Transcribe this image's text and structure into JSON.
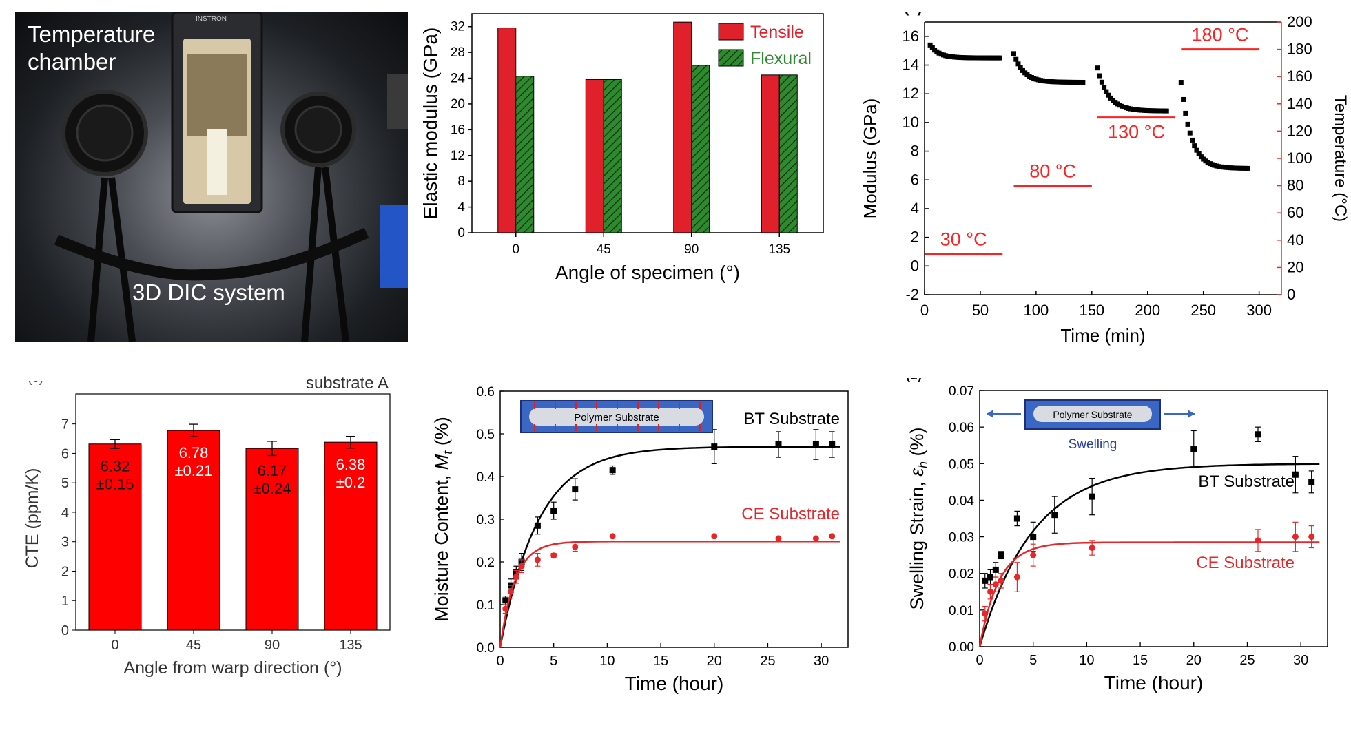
{
  "photo": {
    "label_temperature_chamber_line1": "Temperature",
    "label_temperature_chamber_line2": "chamber",
    "label_dic_system": "3D DIC system",
    "brand_text": "INSTRON"
  },
  "colors": {
    "tensile_red": "#e0202a",
    "flexural_green": "#2f8a2f",
    "cte_red": "#ff0000",
    "bt_black": "#000000",
    "ce_red": "#e8262a",
    "temperature_red": "#ff2020"
  },
  "chart_data": [
    {
      "id": "elastic_modulus",
      "type": "bar",
      "xlabel": "Angle of specimen (°)",
      "ylabel": "Elastic modulus (GPa)",
      "categories": [
        "0",
        "45",
        "90",
        "135"
      ],
      "ylim": [
        0,
        34
      ],
      "yticks": [
        "0",
        "4",
        "8",
        "12",
        "16",
        "20",
        "24",
        "28",
        "32"
      ],
      "series": [
        {
          "name": "Tensile",
          "values": [
            31.8,
            23.8,
            32.7,
            24.5
          ]
        },
        {
          "name": "Flexural",
          "values": [
            24.3,
            23.8,
            26.0,
            24.5
          ]
        }
      ],
      "legend": "top-right"
    },
    {
      "id": "modulus_time",
      "type": "scatter",
      "panel_tag": "(a)",
      "xlabel": "Time (min)",
      "ylabel": "Modulus (GPa)",
      "y2label": "Temperature (°C)",
      "xlim": [
        0,
        320
      ],
      "ylim": [
        -2,
        17
      ],
      "y2lim": [
        0,
        200
      ],
      "xticks": [
        "0",
        "50",
        "100",
        "150",
        "200",
        "250",
        "300"
      ],
      "yticks": [
        "-2",
        "0",
        "2",
        "4",
        "6",
        "8",
        "10",
        "12",
        "14",
        "16"
      ],
      "y2ticks": [
        "0",
        "20",
        "40",
        "60",
        "80",
        "100",
        "120",
        "140",
        "160",
        "180",
        "200"
      ],
      "temperature_steps": [
        {
          "label": "30 °C",
          "x": [
            0,
            70
          ],
          "temperature": 30
        },
        {
          "label": "80 °C",
          "x": [
            80,
            150
          ],
          "temperature": 80
        },
        {
          "label": "130 °C",
          "x": [
            155,
            225
          ],
          "temperature": 130
        },
        {
          "label": "180 °C",
          "x": [
            230,
            300
          ],
          "temperature": 180
        }
      ],
      "segments": [
        {
          "x0": 5,
          "x1": 68,
          "y0": 15.4,
          "yEnd": 14.5,
          "tau": 8
        },
        {
          "x0": 80,
          "x1": 142,
          "y0": 14.8,
          "yEnd": 12.8,
          "tau": 9
        },
        {
          "x0": 155,
          "x1": 218,
          "y0": 13.8,
          "yEnd": 10.8,
          "tau": 10
        },
        {
          "x0": 230,
          "x1": 290,
          "y0": 12.8,
          "yEnd": 6.8,
          "tau": 9
        }
      ]
    },
    {
      "id": "cte",
      "type": "bar",
      "panel_tag": "(c)",
      "title": "substrate A",
      "xlabel": "Angle from warp direction (°)",
      "ylabel": "CTE (ppm/K)",
      "categories": [
        "0",
        "45",
        "90",
        "135"
      ],
      "ylim": [
        0,
        7.6
      ],
      "yticks": [
        "0",
        "1",
        "2",
        "3",
        "4",
        "5",
        "6",
        "7"
      ],
      "values": [
        6.32,
        6.78,
        6.17,
        6.38
      ],
      "errors": [
        0.15,
        0.21,
        0.24,
        0.2
      ],
      "bar_labels": [
        [
          "6.32",
          "±0.15"
        ],
        [
          "6.78",
          "±0.21"
        ],
        [
          "6.17",
          "±0.24"
        ],
        [
          "6.38",
          "±0.2"
        ]
      ]
    },
    {
      "id": "moisture",
      "type": "scatter",
      "xlabel": "Time (hour)",
      "ylabel_main": "Moisture Content, ",
      "ylabel_sym": "M",
      "ylabel_sub": "t",
      "ylabel_unit": " (%)",
      "xlim": [
        0,
        32.5
      ],
      "ylim": [
        0,
        0.6
      ],
      "xticks": [
        "0",
        "5",
        "10",
        "15",
        "20",
        "25",
        "30"
      ],
      "yticks": [
        "0.0",
        "0.1",
        "0.2",
        "0.3",
        "0.4",
        "0.5",
        "0.6"
      ],
      "inset_label": "Polymer Substrate",
      "series": [
        {
          "name": "BT Substrate",
          "x": [
            0.5,
            1,
            1.5,
            2,
            3.5,
            5,
            7,
            10.5,
            20,
            26,
            29.5,
            31
          ],
          "y": [
            0.11,
            0.145,
            0.175,
            0.2,
            0.285,
            0.32,
            0.37,
            0.415,
            0.47,
            0.475,
            0.475,
            0.475
          ],
          "err": [
            0.01,
            0.015,
            0.015,
            0.02,
            0.02,
            0.02,
            0.025,
            0.01,
            0.04,
            0.03,
            0.035,
            0.03
          ],
          "fit": {
            "ymax": 0.47,
            "k": 0.28
          }
        },
        {
          "name": "CE Substrate",
          "x": [
            0.5,
            1,
            1.5,
            2,
            3.5,
            5,
            7,
            10.5,
            20,
            26,
            29.5,
            31
          ],
          "y": [
            0.09,
            0.13,
            0.165,
            0.19,
            0.205,
            0.215,
            0.235,
            0.26,
            0.26,
            0.255,
            0.255,
            0.26
          ],
          "err": [
            0.01,
            0.015,
            0.015,
            0.015,
            0.015,
            0.005,
            0.01,
            0.0,
            0.0,
            0.0,
            0.0,
            0.0
          ],
          "fit": {
            "ymax": 0.248,
            "k": 0.72
          }
        }
      ]
    },
    {
      "id": "swelling",
      "type": "scatter",
      "panel_tag": "(d)",
      "xlabel": "Time (hour)",
      "ylabel_main": "Swelling Strain, ",
      "ylabel_sym": "ε",
      "ylabel_sub": "h",
      "ylabel_unit": " (%)",
      "xlim": [
        0,
        32.5
      ],
      "ylim": [
        0,
        0.07
      ],
      "xticks": [
        "0",
        "5",
        "10",
        "15",
        "20",
        "25",
        "30"
      ],
      "yticks": [
        "0.00",
        "0.01",
        "0.02",
        "0.03",
        "0.04",
        "0.05",
        "0.06",
        "0.07"
      ],
      "inset_label": "Polymer Substrate",
      "inset_caption": "Swelling",
      "series": [
        {
          "name": "BT Substrate",
          "x": [
            0.5,
            1,
            1.5,
            2,
            3.5,
            5,
            7,
            10.5,
            20,
            26,
            29.5,
            31
          ],
          "y": [
            0.018,
            0.019,
            0.021,
            0.025,
            0.035,
            0.03,
            0.036,
            0.041,
            0.054,
            0.058,
            0.047,
            0.045
          ],
          "err": [
            0.002,
            0.002,
            0.002,
            0.001,
            0.002,
            0.004,
            0.005,
            0.005,
            0.005,
            0.002,
            0.005,
            0.003
          ],
          "fit": {
            "ymax": 0.05,
            "k": 0.2
          }
        },
        {
          "name": "CE Substrate",
          "x": [
            0.5,
            1,
            1.5,
            2,
            3.5,
            5,
            10.5,
            26,
            29.5,
            31
          ],
          "y": [
            0.009,
            0.015,
            0.017,
            0.018,
            0.019,
            0.025,
            0.027,
            0.029,
            0.03,
            0.03
          ],
          "err": [
            0.002,
            0.002,
            0.002,
            0.002,
            0.004,
            0.003,
            0.002,
            0.003,
            0.004,
            0.003
          ],
          "fit": {
            "ymax": 0.0285,
            "k": 0.55
          }
        }
      ]
    }
  ]
}
